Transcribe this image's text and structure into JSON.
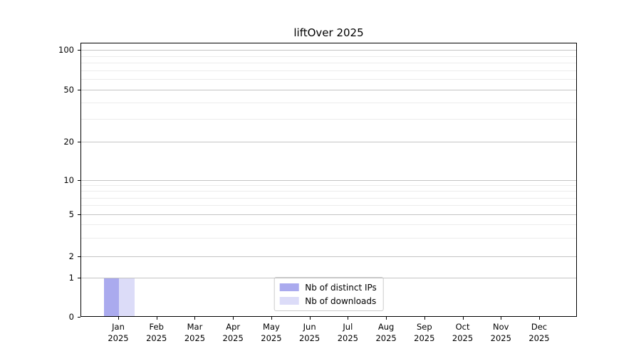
{
  "chart_data": {
    "type": "bar",
    "title": "liftOver 2025",
    "categories": [
      "Jan",
      "Feb",
      "Mar",
      "Apr",
      "May",
      "Jun",
      "Jul",
      "Aug",
      "Sep",
      "Oct",
      "Nov",
      "Dec"
    ],
    "x_year_label": "2025",
    "series": [
      {
        "name": "Nb of distinct IPs",
        "color": "#aaaaee",
        "values": [
          1,
          0,
          0,
          0,
          0,
          0,
          0,
          0,
          0,
          0,
          0,
          0
        ]
      },
      {
        "name": "Nb of downloads",
        "color": "#dcdcf8",
        "values": [
          1,
          0,
          0,
          0,
          0,
          0,
          0,
          0,
          0,
          0,
          0,
          0
        ]
      }
    ],
    "y_axis": {
      "scale": "symlog",
      "range": [
        0,
        100
      ],
      "ticks": [
        100,
        50,
        20,
        10,
        5,
        2,
        1,
        0
      ],
      "minor_gridlines": [
        90,
        80,
        70,
        60,
        40,
        30,
        9,
        8,
        7,
        6,
        4,
        3
      ]
    },
    "grid": "both",
    "legend": {
      "position": "lower center"
    },
    "colors": {
      "bar_distinct_ips": "#aaaaee",
      "bar_downloads": "#dcdcf8",
      "major_grid": "#c4c4c4",
      "minor_grid": "#ececec",
      "spine": "#000000",
      "text": "#000000",
      "background": "#ffffff"
    }
  }
}
